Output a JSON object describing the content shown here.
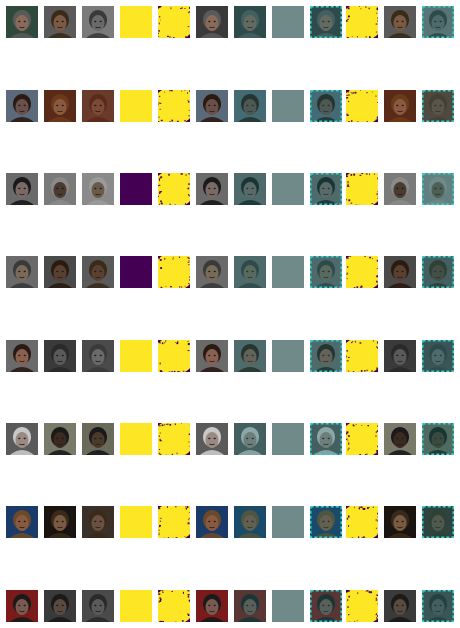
{
  "colors": {
    "yellow": "#fde725",
    "purple": "#440154",
    "gray_teal": "#6f8a88",
    "teal_border": "#34d1cf",
    "background": "#ffffff"
  },
  "column_kinds": [
    "photo",
    "photo",
    "photo",
    "mask",
    "mask_noisy",
    "photo",
    "photo_teal",
    "flat",
    "photo_teal_border",
    "mask_noisy",
    "photo",
    "photo_teal_border"
  ],
  "rows": [
    {
      "faces": [
        {
          "skin": "#8a6a5a",
          "hair": "#5a5a5a",
          "bg": "#2f4a3a"
        },
        {
          "skin": "#7a5a44",
          "hair": "#3a2a1a",
          "bg": "#5a5a5a"
        },
        {
          "skin": "#6a6a6a",
          "hair": "#3a3a3a",
          "bg": "#7a7a7a"
        },
        {
          "skin": "#8a6a5a",
          "hair": "#5a5a5a",
          "bg": "#3a3a3a"
        }
      ],
      "mask_value": "yellow"
    },
    {
      "faces": [
        {
          "skin": "#6a5048",
          "hair": "#2a1a14",
          "bg": "#5a6a7a"
        },
        {
          "skin": "#8a5a40",
          "hair": "#6a3a1a",
          "bg": "#5a2a18"
        },
        {
          "skin": "#7a4a36",
          "hair": "#5a2a1a",
          "bg": "#6a3a2a"
        },
        {
          "skin": "#6a5048",
          "hair": "#2a1a14",
          "bg": "#5a6a7a"
        }
      ],
      "mask_value": "yellow"
    },
    {
      "faces": [
        {
          "skin": "#7a6a66",
          "hair": "#1a1a1a",
          "bg": "#6a6a6a"
        },
        {
          "skin": "#4a3a30",
          "hair": "#8a8a8a",
          "bg": "#7a7a7a"
        },
        {
          "skin": "#6a5a4a",
          "hair": "#9a9a9a",
          "bg": "#8a8a8a"
        },
        {
          "skin": "#7a6a66",
          "hair": "#1a1a1a",
          "bg": "#6a6a6a"
        }
      ],
      "mask_value": "purple"
    },
    {
      "faces": [
        {
          "skin": "#7a6a5a",
          "hair": "#3a3a3a",
          "bg": "#6a6a6a"
        },
        {
          "skin": "#5a4030",
          "hair": "#2a1a10",
          "bg": "#4a4a4a"
        },
        {
          "skin": "#5a4030",
          "hair": "#3a2a1a",
          "bg": "#5a5a5a"
        },
        {
          "skin": "#7a6a5a",
          "hair": "#3a3a3a",
          "bg": "#6a6a6a"
        }
      ],
      "mask_value": "purple"
    },
    {
      "faces": [
        {
          "skin": "#8a6050",
          "hair": "#2a1a14",
          "bg": "#6a6a6a"
        },
        {
          "skin": "#5a5a5a",
          "hair": "#2a2a2a",
          "bg": "#3a3a3a"
        },
        {
          "skin": "#6a6a6a",
          "hair": "#3a3a3a",
          "bg": "#4a4a4a"
        },
        {
          "skin": "#8a6050",
          "hair": "#2a1a14",
          "bg": "#6a6a6a"
        }
      ],
      "mask_value": "yellow"
    },
    {
      "faces": [
        {
          "skin": "#9a8a84",
          "hair": "#c8c8c8",
          "bg": "#5a5a5a"
        },
        {
          "skin": "#3a2a20",
          "hair": "#1a1a1a",
          "bg": "#7a7a6a"
        },
        {
          "skin": "#4a3a2a",
          "hair": "#1a1a1a",
          "bg": "#6a6a5a"
        },
        {
          "skin": "#9a8a84",
          "hair": "#c8c8c8",
          "bg": "#5a5a5a"
        }
      ],
      "mask_value": "yellow"
    },
    {
      "faces": [
        {
          "skin": "#8a5a40",
          "hair": "#6a4a2a",
          "bg": "#1a3a6a"
        },
        {
          "skin": "#7a5a40",
          "hair": "#3a2a1a",
          "bg": "#1a1410"
        },
        {
          "skin": "#6a5040",
          "hair": "#3a2a1a",
          "bg": "#3a3028"
        },
        {
          "skin": "#8a5a40",
          "hair": "#6a4a2a",
          "bg": "#1a3a6a"
        }
      ],
      "mask_value": "yellow"
    },
    {
      "faces": [
        {
          "skin": "#7a5a50",
          "hair": "#1a1a1a",
          "bg": "#7a1a1a"
        },
        {
          "skin": "#5a4a40",
          "hair": "#1a1a1a",
          "bg": "#3a3a3a"
        },
        {
          "skin": "#5a5a5a",
          "hair": "#2a2a2a",
          "bg": "#4a4a4a"
        },
        {
          "skin": "#7a5a50",
          "hair": "#1a1a1a",
          "bg": "#7a1a1a"
        }
      ],
      "mask_value": "yellow"
    }
  ]
}
